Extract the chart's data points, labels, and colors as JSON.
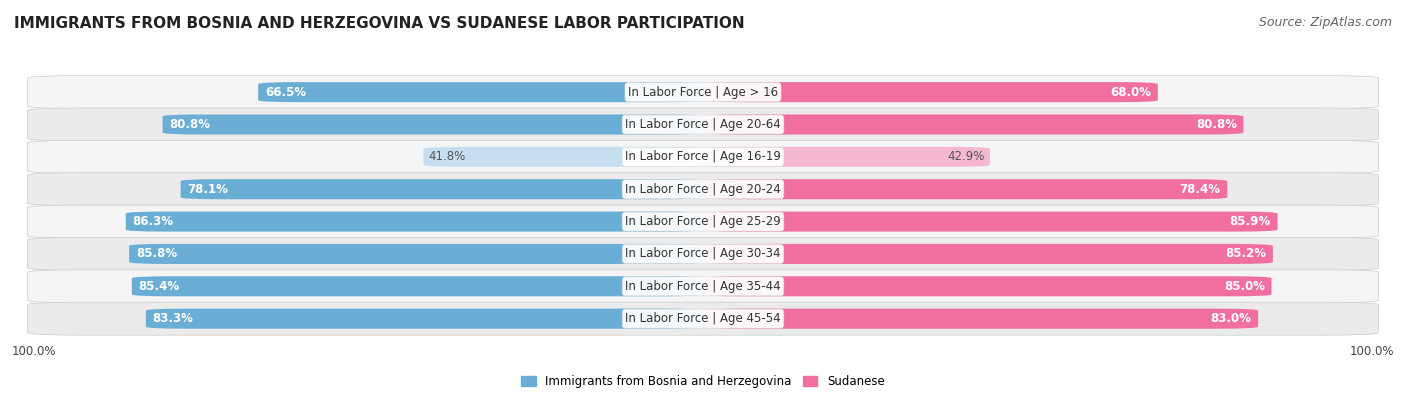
{
  "title": "IMMIGRANTS FROM BOSNIA AND HERZEGOVINA VS SUDANESE LABOR PARTICIPATION",
  "source": "Source: ZipAtlas.com",
  "categories": [
    "In Labor Force | Age > 16",
    "In Labor Force | Age 20-64",
    "In Labor Force | Age 16-19",
    "In Labor Force | Age 20-24",
    "In Labor Force | Age 25-29",
    "In Labor Force | Age 30-34",
    "In Labor Force | Age 35-44",
    "In Labor Force | Age 45-54"
  ],
  "bosnia_values": [
    66.5,
    80.8,
    41.8,
    78.1,
    86.3,
    85.8,
    85.4,
    83.3
  ],
  "sudanese_values": [
    68.0,
    80.8,
    42.9,
    78.4,
    85.9,
    85.2,
    85.0,
    83.0
  ],
  "bosnia_color": "#6aaed6",
  "bosnia_light_color": "#c5dff0",
  "sudanese_color": "#f06fa0",
  "sudanese_light_color": "#f5b8d0",
  "row_bg_even": "#f5f5f5",
  "row_bg_odd": "#ebebeb",
  "bar_height": 0.62,
  "max_value": 100.0,
  "legend_bosnia": "Immigrants from Bosnia and Herzegovina",
  "legend_sudanese": "Sudanese",
  "title_fontsize": 11,
  "source_fontsize": 9,
  "label_fontsize": 8.5,
  "cat_fontsize": 8.5
}
